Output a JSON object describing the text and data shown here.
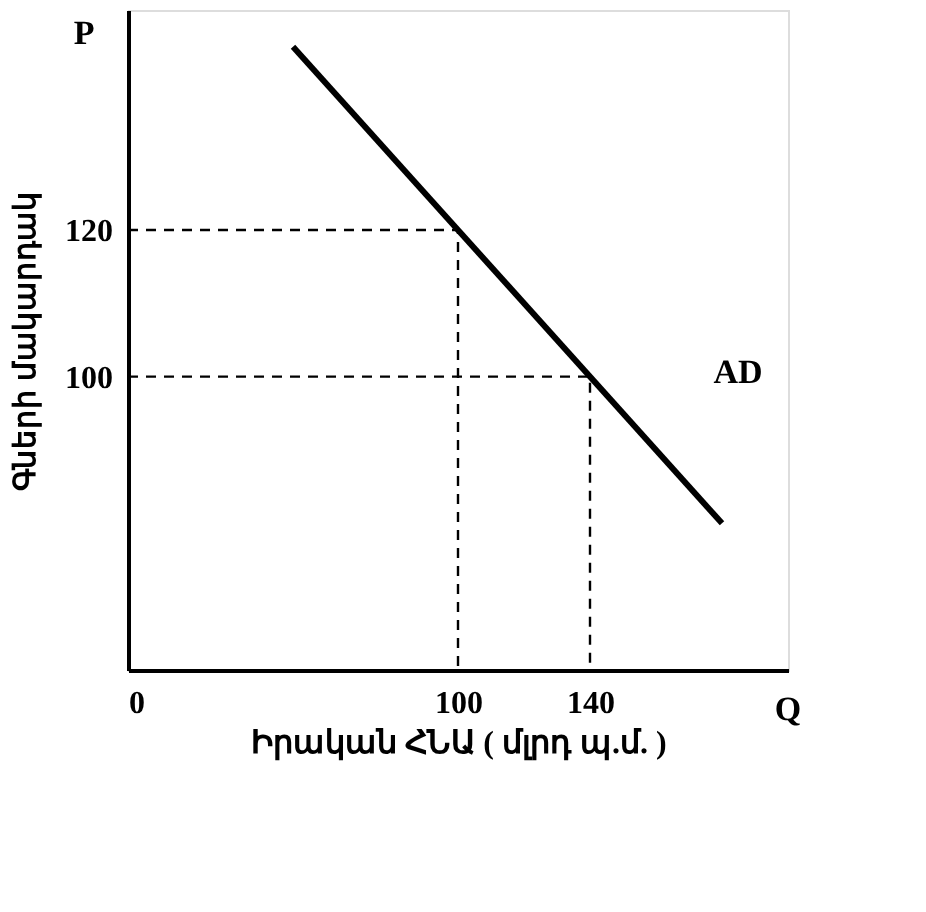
{
  "chart_data": {
    "type": "line",
    "xlabel": "Իրական ՀՆԱ ( մլրդ պ.մ. )",
    "ylabel": "Գների մակարդակ",
    "xlim": [
      0,
      200
    ],
    "ylim": [
      60,
      150
    ],
    "xticks": [
      0,
      100,
      140
    ],
    "yticks": [
      100,
      120
    ],
    "grid": false,
    "marker": "none",
    "series": [
      {
        "x": [
          50,
          180
        ],
        "values": [
          145,
          80
        ],
        "color": "#000000",
        "line_style": "solid"
      },
      {
        "x": [
          0,
          100,
          100
        ],
        "values": [
          120,
          120,
          60
        ],
        "color": "#000000",
        "line_style": "dashed"
      },
      {
        "x": [
          0,
          140,
          140
        ],
        "values": [
          100,
          100,
          60
        ],
        "color": "#000000",
        "line_style": "dashed"
      }
    ],
    "annotations": [
      "P",
      "Q",
      "AD"
    ]
  }
}
